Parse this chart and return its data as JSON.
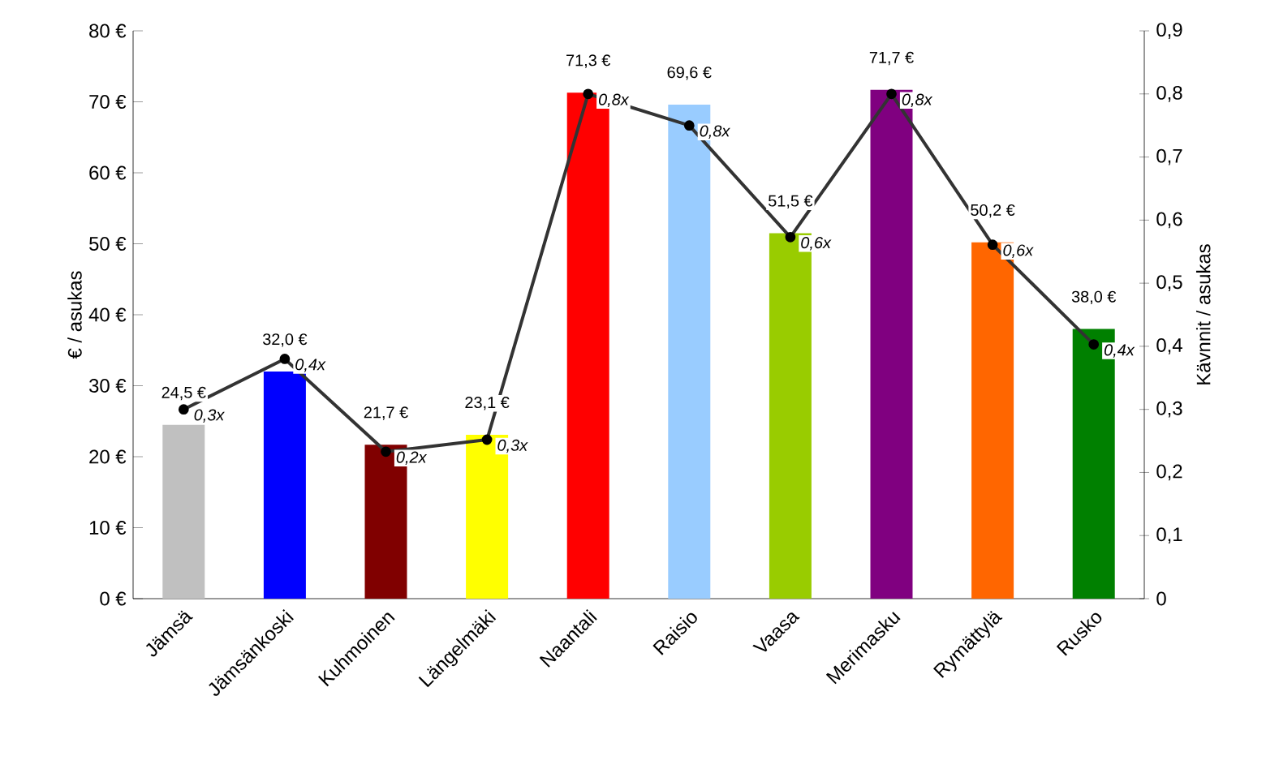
{
  "chart_data": {
    "type": "bar",
    "ylabel": "€ / asukas",
    "y2label": "Kävnnit / asukas",
    "categories": [
      "Jämsä",
      "Jämsänkoski",
      "Kuhmoinen",
      "Längelmäki",
      "Naantali",
      "Raisio",
      "Vaasa",
      "Merimasku",
      "Rymättylä",
      "Rusko"
    ],
    "series": [
      {
        "colors": [
          "#c0c0c0",
          "#0000ff",
          "#800000",
          "#ffff00",
          "#ff0000",
          "#99ccff",
          "#99cc00",
          "#800080",
          "#ff6600",
          "#008000"
        ],
        "values": [
          24.5,
          32.0,
          21.7,
          23.1,
          71.3,
          69.6,
          51.5,
          71.7,
          50.2,
          38.0
        ],
        "value_labels": [
          "24,5 €",
          "32,0 €",
          "21,7 €",
          "23,1 €",
          "71,3 €",
          "69,6 €",
          "51,5 €",
          "71,7 €",
          "50,2 €",
          "38,0 €"
        ]
      },
      {
        "type": "line",
        "axis": "y2",
        "color": "#333333",
        "marker": "circle",
        "values": [
          0.3,
          0.38,
          0.233,
          0.252,
          0.8,
          0.75,
          0.573,
          0.8,
          0.561,
          0.403
        ],
        "value_labels": [
          "0,3x",
          "0,4x",
          "0,2x",
          "0,3x",
          "0,8x",
          "0,8x",
          "0,6x",
          "0,8x",
          "0,6x",
          "0,4x"
        ]
      }
    ],
    "ylim": [
      0,
      80
    ],
    "yticks": [
      {
        "value": 0,
        "label": "0 €"
      },
      {
        "value": 10,
        "label": "10 €"
      },
      {
        "value": 20,
        "label": "20 €"
      },
      {
        "value": 30,
        "label": "30 €"
      },
      {
        "value": 40,
        "label": "40 €"
      },
      {
        "value": 50,
        "label": "50 €"
      },
      {
        "value": 60,
        "label": "60 €"
      },
      {
        "value": 70,
        "label": "70 €"
      },
      {
        "value": 80,
        "label": "80 €"
      }
    ],
    "y2lim": [
      0,
      0.9
    ],
    "y2ticks": [
      0,
      {
        "value": 0.1,
        "label": "0,1"
      },
      {
        "value": 0.2,
        "label": "0,2"
      },
      {
        "value": 0.3,
        "label": "0,3"
      },
      {
        "value": 0.4,
        "label": "0,4"
      },
      {
        "value": 0.5,
        "label": "0,5"
      },
      {
        "value": 0.6,
        "label": "0,6"
      },
      {
        "value": 0.7,
        "label": "0,7"
      },
      {
        "value": 0.8,
        "label": "0,8"
      },
      {
        "value": 0.9,
        "label": "0,9"
      }
    ],
    "grid": false
  }
}
